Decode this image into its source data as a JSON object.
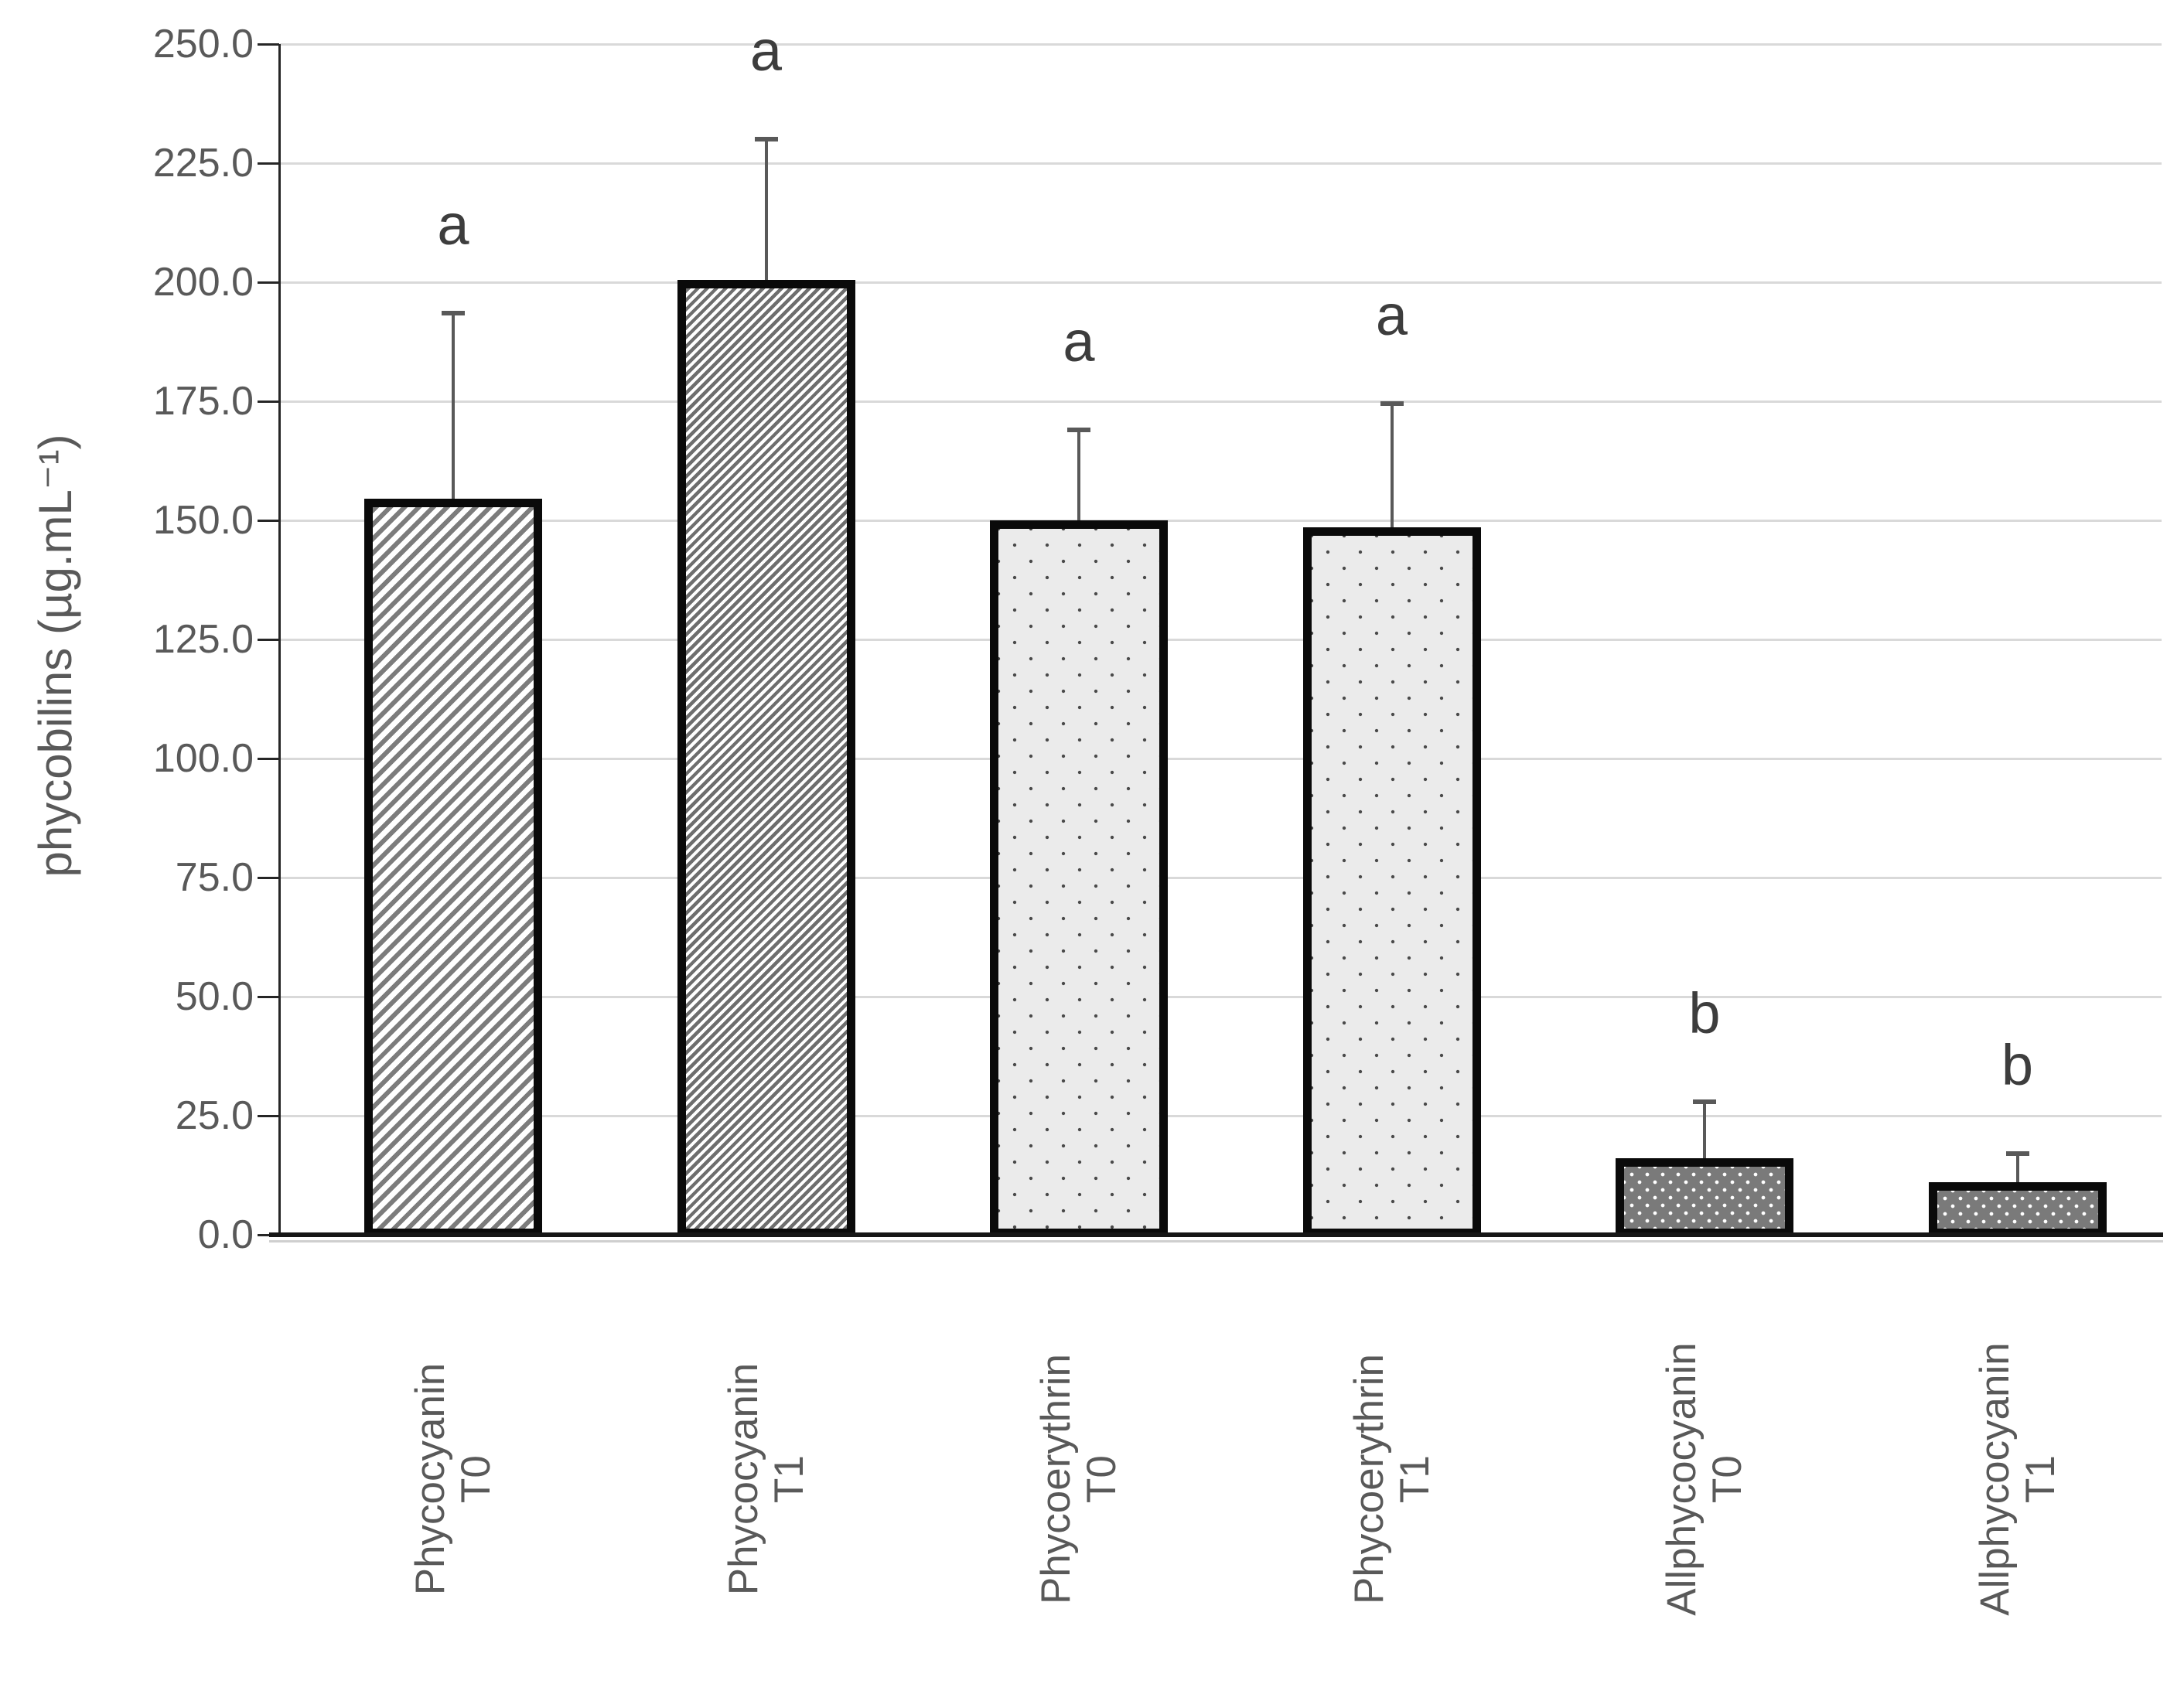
{
  "chart_data": {
    "type": "bar",
    "title": "",
    "xlabel": "",
    "ylabel": "phycobilins (µg.mL⁻¹)",
    "ylim": [
      0,
      250
    ],
    "y_tick_step": 25,
    "y_tick_labels": [
      "250.0",
      "225.0",
      "200.0",
      "175.0",
      "150.0",
      "125.0",
      "100.0",
      "75.0",
      "50.0",
      "25.0",
      "0.0"
    ],
    "grid": "horizontal",
    "legend": "none",
    "categories": [
      [
        "Phycocyanin",
        "T0"
      ],
      [
        "Phycocyanin",
        "T1"
      ],
      [
        "Phycoerythrin",
        "T0"
      ],
      [
        "Phycoerythrin",
        "T1"
      ],
      [
        "Allphycocyanin",
        "T0"
      ],
      [
        "Allphycocyanin",
        "T1"
      ]
    ],
    "values": [
      154.5,
      200.5,
      150.0,
      148.5,
      16.0,
      11.0
    ],
    "errors_plus": [
      39.0,
      29.5,
      19.0,
      26.0,
      12.0,
      6.0
    ],
    "significance_letters": [
      "a",
      "a",
      "a",
      "a",
      "b",
      "b"
    ],
    "bar_patterns": [
      "diagonal-hatch-light",
      "diagonal-hatch-dense",
      "dots-on-light",
      "dots-on-light",
      "dots-on-dark",
      "dots-on-dark"
    ],
    "colors": {
      "bar_border": "#0a0a0a",
      "hatch_gray_light": "#7c7c7c",
      "hatch_gray_dense": "#6e6e6e",
      "dots_light_bg": "#ebebeb",
      "dots_light_dot": "#4a4a4a",
      "dots_dark_bg": "#7a7a7a",
      "dots_dark_dot": "#ffffff",
      "gridline": "#d9d9d9",
      "axis": "#262626",
      "text": "#595959",
      "significance_letter": "#3d3d3d",
      "error_bar": "#595959"
    }
  }
}
